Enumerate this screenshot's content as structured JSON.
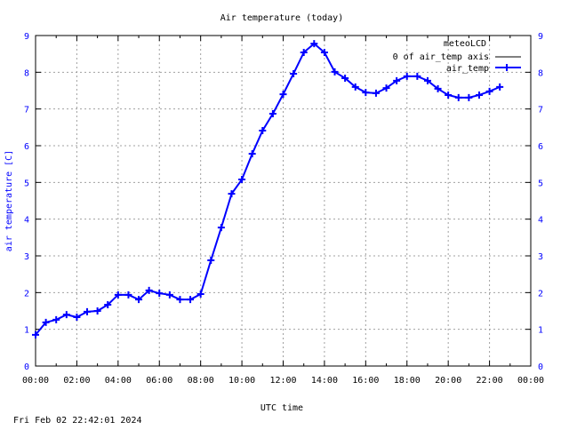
{
  "chart_data": {
    "type": "line",
    "title": "Air temperature (today)",
    "xlabel": "UTC time",
    "ylabel": "air temperature [C]",
    "xlim": [
      0,
      24
    ],
    "ylim": [
      0,
      9
    ],
    "grid": true,
    "legend_position": "top-right",
    "legend_title": "meteoLCD",
    "x_tick_labels": [
      "00:00",
      "02:00",
      "04:00",
      "06:00",
      "08:00",
      "10:00",
      "12:00",
      "14:00",
      "16:00",
      "18:00",
      "20:00",
      "22:00",
      "00:00"
    ],
    "y_ticks": [
      0,
      1,
      2,
      3,
      4,
      5,
      6,
      7,
      8,
      9
    ],
    "series": [
      {
        "name": "0 of air_temp axis",
        "color": "#000000",
        "values": []
      },
      {
        "name": "air_temp",
        "color": "#0000ff",
        "x_hours": [
          0,
          0.5,
          1,
          1.5,
          2,
          2.5,
          3,
          3.5,
          4,
          4.5,
          5,
          5.5,
          6,
          6.5,
          7,
          7.5,
          8,
          8.5,
          9,
          9.5,
          10,
          10.5,
          11,
          11.5,
          12,
          12.5,
          13,
          13.5,
          14,
          14.5,
          15,
          15.5,
          16,
          16.5,
          17,
          17.5,
          18,
          18.5,
          19,
          19.5,
          20,
          20.5,
          21,
          21.5,
          22,
          22.5
        ],
        "values": [
          0.85,
          1.19,
          1.26,
          1.4,
          1.33,
          1.48,
          1.5,
          1.67,
          1.94,
          1.94,
          1.81,
          2.06,
          1.98,
          1.94,
          1.81,
          1.81,
          1.96,
          2.88,
          3.77,
          4.69,
          5.08,
          5.78,
          6.41,
          6.87,
          7.4,
          7.96,
          8.54,
          8.78,
          8.54,
          8.01,
          7.84,
          7.6,
          7.45,
          7.43,
          7.57,
          7.77,
          7.89,
          7.89,
          7.77,
          7.55,
          7.38,
          7.31,
          7.31,
          7.38,
          7.48,
          7.6
        ]
      }
    ]
  },
  "footer": {
    "timestamp": "Fri Feb 02 22:42:01 2024"
  }
}
